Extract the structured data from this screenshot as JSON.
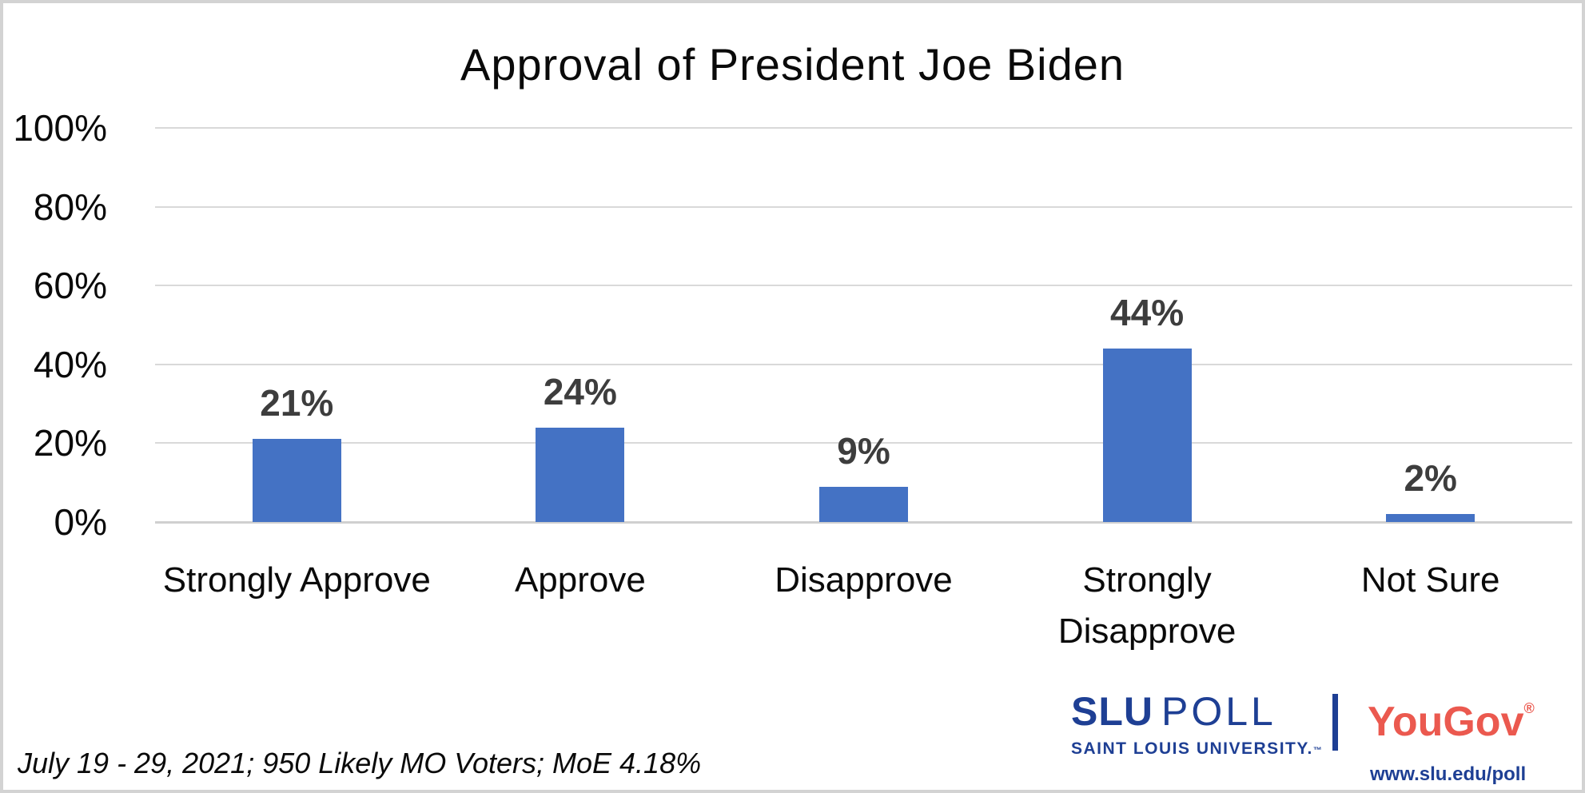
{
  "chart_data": {
    "type": "bar",
    "title": "Approval of President Joe Biden",
    "categories": [
      "Strongly Approve",
      "Approve",
      "Disapprove",
      "Strongly Disapprove",
      "Not Sure"
    ],
    "values": [
      21,
      24,
      9,
      44,
      2
    ],
    "value_labels": [
      "21%",
      "24%",
      "9%",
      "44%",
      "2%"
    ],
    "xlabel": "",
    "ylabel": "",
    "ylim": [
      0,
      100
    ],
    "yticks": [
      0,
      20,
      40,
      60,
      80,
      100
    ],
    "ytick_labels": [
      "0%",
      "20%",
      "40%",
      "60%",
      "80%",
      "100%"
    ],
    "grid": true,
    "legend": false,
    "bar_color": "#4472C4",
    "value_label_color": "#3d3d3d",
    "gridline_color": "#d9d9d9"
  },
  "footnote": "July 19 - 29, 2021; 950 Likely MO Voters; MoE 4.18%",
  "branding": {
    "slu_name": "SLU",
    "slu_poll": "POLL",
    "slu_university": "SAINT LOUIS UNIVERSITY.",
    "slu_tm": "™",
    "yougov": "YouGov",
    "yougov_reg": "®",
    "url": "www.slu.edu/poll",
    "slu_blue": "#1E3F94",
    "yougov_red": "#EB594F"
  }
}
